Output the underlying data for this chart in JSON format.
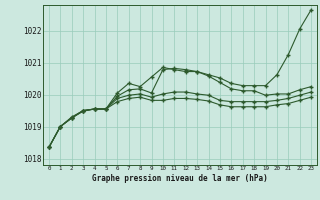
{
  "background_color": "#cce8df",
  "plot_bg_color": "#cce8df",
  "grid_color": "#99ccbb",
  "line_color": "#2d5a2d",
  "marker_color": "#2d5a2d",
  "xlabel": "Graphe pression niveau de la mer (hPa)",
  "xlim": [
    -0.5,
    23.5
  ],
  "ylim": [
    1017.8,
    1022.8
  ],
  "yticks": [
    1018,
    1019,
    1020,
    1021,
    1022
  ],
  "xticks": [
    0,
    1,
    2,
    3,
    4,
    5,
    6,
    7,
    8,
    9,
    10,
    11,
    12,
    13,
    14,
    15,
    16,
    17,
    18,
    19,
    20,
    21,
    22,
    23
  ],
  "series": [
    [
      1018.35,
      1019.0,
      1019.3,
      1019.5,
      1019.55,
      1019.55,
      1020.05,
      1020.35,
      1020.25,
      1020.55,
      1020.85,
      1020.78,
      1020.72,
      1020.72,
      1020.62,
      1020.52,
      1020.35,
      1020.28,
      1020.28,
      1020.28,
      1020.62,
      1021.25,
      1022.05,
      1022.65
    ],
    [
      1018.35,
      1019.0,
      1019.27,
      1019.5,
      1019.55,
      1019.55,
      1019.95,
      1020.15,
      1020.18,
      1020.05,
      1020.78,
      1020.82,
      1020.78,
      1020.72,
      1020.58,
      1020.38,
      1020.18,
      1020.12,
      1020.12,
      1019.98,
      1020.02,
      1020.02,
      1020.15,
      1020.25
    ],
    [
      1018.35,
      1019.0,
      1019.27,
      1019.5,
      1019.55,
      1019.55,
      1019.88,
      1019.98,
      1020.02,
      1019.92,
      1020.02,
      1020.08,
      1020.08,
      1020.02,
      1019.98,
      1019.82,
      1019.78,
      1019.78,
      1019.78,
      1019.78,
      1019.82,
      1019.88,
      1019.98,
      1020.08
    ],
    [
      1018.35,
      1019.0,
      1019.27,
      1019.48,
      1019.55,
      1019.55,
      1019.78,
      1019.88,
      1019.92,
      1019.82,
      1019.82,
      1019.88,
      1019.88,
      1019.85,
      1019.8,
      1019.68,
      1019.62,
      1019.62,
      1019.62,
      1019.62,
      1019.68,
      1019.72,
      1019.82,
      1019.92
    ]
  ]
}
